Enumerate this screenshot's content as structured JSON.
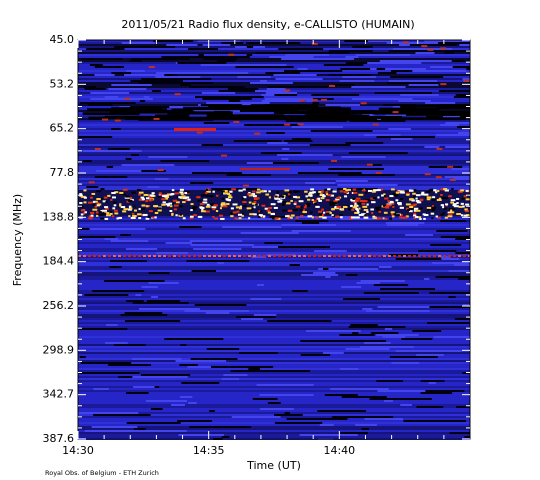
{
  "chart_data": {
    "type": "spectrogram",
    "title": "2011/05/21  Radio flux density, e-CALLISTO (HUMAIN)",
    "x_label": "Time (UT)",
    "y_label": "Frequency (MHz)",
    "xticks": [
      "14:30",
      "14:35",
      "14:40"
    ],
    "yticks": [
      {
        "value": 45,
        "label": "45.0"
      },
      53.2,
      65.2,
      77.8,
      138.8,
      184.4,
      256.2,
      298.9,
      342.7,
      387.6
    ],
    "footer": "Royal Obs. of Belgium - ETH Zurich"
  }
}
